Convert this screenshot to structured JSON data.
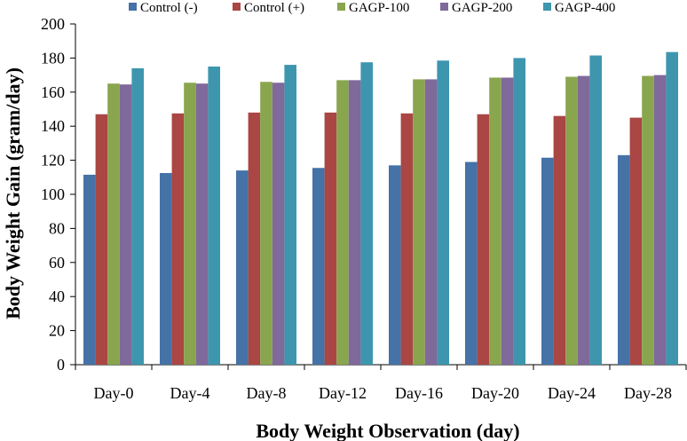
{
  "chart_data": {
    "type": "bar",
    "title": "",
    "xlabel": "Body Weight Observation (day)",
    "ylabel": "Body Weight Gain (gram/day)",
    "ylim": [
      0,
      200
    ],
    "yticks": [
      0,
      20,
      40,
      60,
      80,
      100,
      120,
      140,
      160,
      180,
      200
    ],
    "grid": false,
    "legend_position": "top",
    "categories": [
      "Day-0",
      "Day-4",
      "Day-8",
      "Day-12",
      "Day-16",
      "Day-20",
      "Day-24",
      "Day-28"
    ],
    "series": [
      {
        "name": "Control (-)",
        "color": "#4572A7",
        "values": [
          111.5,
          112.5,
          114.0,
          115.5,
          117.0,
          119.0,
          121.5,
          123.0
        ]
      },
      {
        "name": "Control (+)",
        "color": "#AA4643",
        "values": [
          147.0,
          147.5,
          148.0,
          148.0,
          147.5,
          147.0,
          146.0,
          145.0
        ]
      },
      {
        "name": "GAGP-100",
        "color": "#89A54E",
        "values": [
          165.0,
          165.5,
          166.0,
          167.0,
          167.5,
          168.5,
          169.0,
          169.5
        ]
      },
      {
        "name": "GAGP-200",
        "color": "#80699B",
        "values": [
          164.5,
          165.0,
          165.5,
          167.0,
          167.5,
          168.5,
          169.5,
          170.0
        ]
      },
      {
        "name": "GAGP-400",
        "color": "#3D96AE",
        "values": [
          174.0,
          175.0,
          176.0,
          177.5,
          178.5,
          180.0,
          181.5,
          183.5
        ]
      }
    ]
  }
}
